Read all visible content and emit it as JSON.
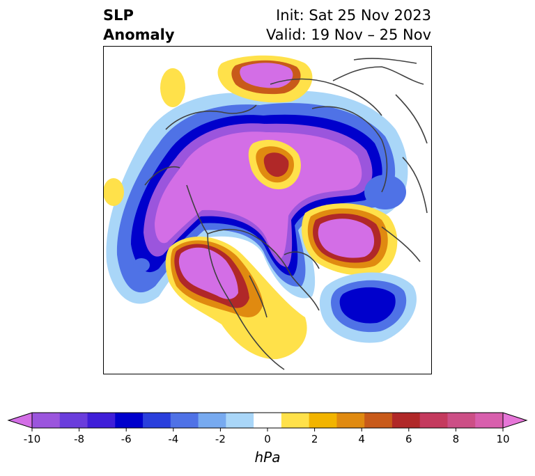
{
  "title": {
    "left_line1": "SLP",
    "left_line2": "Anomaly",
    "right_line1": "Init: Sat 25 Nov 2023",
    "right_line2": "Valid: 19 Nov – 25 Nov"
  },
  "colorbar": {
    "unit": "hPa",
    "ticks": [
      "-10",
      "-8",
      "-6",
      "-4",
      "-2",
      "0",
      "2",
      "4",
      "6",
      "8",
      "10"
    ],
    "colors": [
      "#d36ee6",
      "#9b55dd",
      "#6a3ddc",
      "#3f1ed8",
      "#0000cc",
      "#2a3fdc",
      "#4f72e6",
      "#77aaf0",
      "#a9d6f8",
      "#ffffff",
      "#ffe14a",
      "#f2b400",
      "#e08a10",
      "#c85a1a",
      "#b02828",
      "#c43a5e",
      "#cc4f86",
      "#d85fad",
      "#e676d8"
    ]
  }
}
